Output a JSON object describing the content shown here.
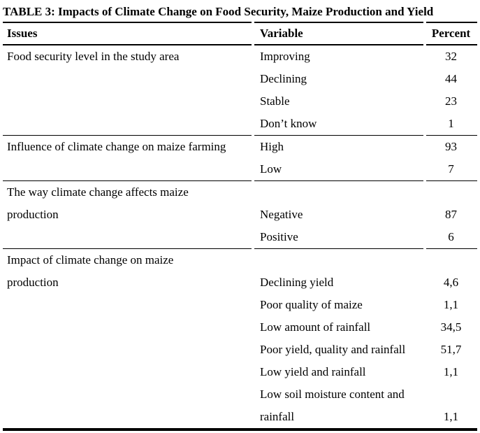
{
  "title": "TABLE 3: Impacts of Climate Change on Food Security, Maize Production and Yield",
  "columns": {
    "issues": "Issues",
    "variable": "Variable",
    "percent": "Percent"
  },
  "sections": [
    {
      "rows": [
        {
          "issue": "Food security level in the study area",
          "variable": "Improving",
          "percent": "32"
        },
        {
          "issue": "",
          "variable": "Declining",
          "percent": "44"
        },
        {
          "issue": "",
          "variable": "Stable",
          "percent": "23"
        },
        {
          "issue": "",
          "variable": "Don’t know",
          "percent": "1"
        }
      ]
    },
    {
      "rows": [
        {
          "issue": "Influence of climate change on maize farming",
          "variable": "High",
          "percent": "93"
        },
        {
          "issue": "",
          "variable": "Low",
          "percent": "7"
        }
      ]
    },
    {
      "rows": [
        {
          "issue": "The way climate change affects maize",
          "variable": "",
          "percent": ""
        },
        {
          "issue": "production",
          "variable": "Negative",
          "percent": "87"
        },
        {
          "issue": "",
          "variable": "Positive",
          "percent": "6"
        }
      ]
    },
    {
      "rows": [
        {
          "issue": "Impact of climate change on maize",
          "variable": "",
          "percent": ""
        },
        {
          "issue": "production",
          "variable": "Declining yield",
          "percent": "4,6"
        },
        {
          "issue": "",
          "variable": "Poor quality of maize",
          "percent": "1,1"
        },
        {
          "issue": "",
          "variable": "Low amount of rainfall",
          "percent": "34,5"
        },
        {
          "issue": "",
          "variable": "Poor yield, quality and rainfall",
          "percent": "51,7"
        },
        {
          "issue": "",
          "variable": "Low yield and rainfall",
          "percent": "1,1"
        },
        {
          "issue": "",
          "variable": "Low soil moisture content and",
          "percent": ""
        },
        {
          "issue": "",
          "variable": "rainfall",
          "percent": "1,1"
        }
      ]
    }
  ]
}
